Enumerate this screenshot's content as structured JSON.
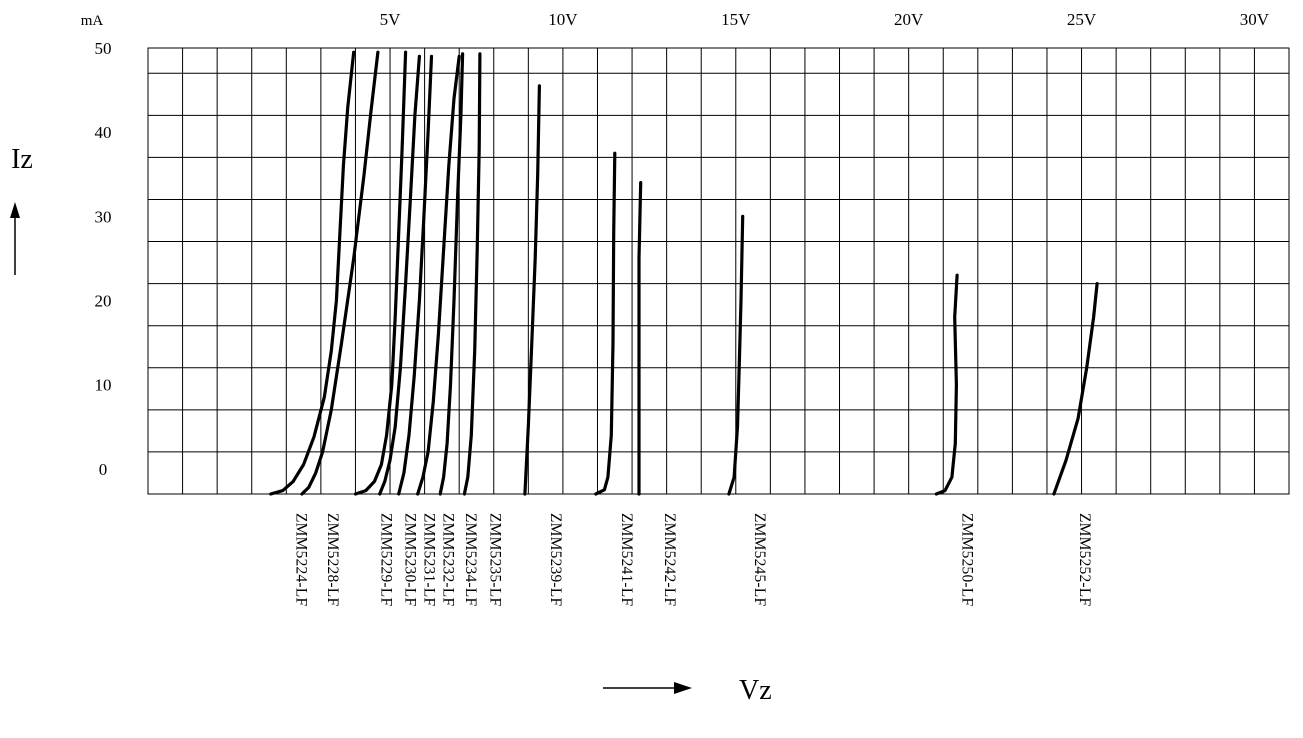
{
  "chart_data": {
    "type": "line",
    "title": "",
    "xlabel": "Vz",
    "ylabel": "Iz",
    "y_unit": "mA",
    "xlim": [
      -2,
      31
    ],
    "ylim": [
      -3,
      50
    ],
    "grid": true,
    "x_tick_labels": [
      {
        "value": 5,
        "label": "5V"
      },
      {
        "value": 10,
        "label": "10V"
      },
      {
        "value": 15,
        "label": "15V"
      },
      {
        "value": 20,
        "label": "20V"
      },
      {
        "value": 25,
        "label": "25V"
      },
      {
        "value": 30,
        "label": "30V"
      }
    ],
    "y_tick_labels": [
      {
        "value": 0,
        "label": "0"
      },
      {
        "value": 10,
        "label": "10"
      },
      {
        "value": 20,
        "label": "20"
      },
      {
        "value": 30,
        "label": "30"
      },
      {
        "value": 40,
        "label": "40"
      },
      {
        "value": 50,
        "label": "50"
      }
    ],
    "series": [
      {
        "name": "ZMM5224-LF",
        "points": [
          [
            1.55,
            -3
          ],
          [
            1.9,
            -2.6
          ],
          [
            2.2,
            -1.5
          ],
          [
            2.5,
            0.5
          ],
          [
            2.8,
            3.8
          ],
          [
            3.1,
            8.5
          ],
          [
            3.3,
            14
          ],
          [
            3.45,
            20
          ],
          [
            3.55,
            28
          ],
          [
            3.65,
            36
          ],
          [
            3.78,
            43
          ],
          [
            3.95,
            49.5
          ]
        ]
      },
      {
        "name": "ZMM5228-LF",
        "points": [
          [
            2.45,
            -3
          ],
          [
            2.65,
            -2.2
          ],
          [
            2.85,
            -0.5
          ],
          [
            3.05,
            2
          ],
          [
            3.3,
            7
          ],
          [
            3.6,
            15
          ],
          [
            3.95,
            25
          ],
          [
            4.25,
            35
          ],
          [
            4.45,
            42.5
          ],
          [
            4.65,
            49.5
          ]
        ]
      },
      {
        "name": "ZMM5229-LF",
        "points": [
          [
            4.0,
            -3
          ],
          [
            4.3,
            -2.6
          ],
          [
            4.55,
            -1.5
          ],
          [
            4.75,
            0.5
          ],
          [
            4.9,
            4
          ],
          [
            5.05,
            10
          ],
          [
            5.15,
            18
          ],
          [
            5.25,
            28
          ],
          [
            5.35,
            38
          ],
          [
            5.45,
            49.5
          ]
        ]
      },
      {
        "name": "ZMM5230-LF",
        "points": [
          [
            4.7,
            -3
          ],
          [
            4.85,
            -1.5
          ],
          [
            5.0,
            1
          ],
          [
            5.15,
            5
          ],
          [
            5.3,
            12
          ],
          [
            5.45,
            22
          ],
          [
            5.6,
            33
          ],
          [
            5.72,
            42
          ],
          [
            5.85,
            49
          ]
        ]
      },
      {
        "name": "ZMM5231-LF",
        "points": [
          [
            5.25,
            -3
          ],
          [
            5.4,
            -0.5
          ],
          [
            5.55,
            4
          ],
          [
            5.7,
            11
          ],
          [
            5.85,
            20
          ],
          [
            5.98,
            30
          ],
          [
            6.1,
            40
          ],
          [
            6.2,
            49
          ]
        ]
      },
      {
        "name": "ZMM5232-LF",
        "points": [
          [
            5.8,
            -3
          ],
          [
            5.95,
            -1
          ],
          [
            6.1,
            2
          ],
          [
            6.25,
            8
          ],
          [
            6.4,
            16
          ],
          [
            6.55,
            26
          ],
          [
            6.7,
            36
          ],
          [
            6.85,
            44
          ],
          [
            7.0,
            49
          ]
        ]
      },
      {
        "name": "ZMM5234-LF",
        "points": [
          [
            6.45,
            -3
          ],
          [
            6.55,
            -1
          ],
          [
            6.65,
            3
          ],
          [
            6.75,
            10
          ],
          [
            6.85,
            20
          ],
          [
            6.95,
            32
          ],
          [
            7.05,
            42
          ],
          [
            7.1,
            49.3
          ]
        ]
      },
      {
        "name": "ZMM5235-LF",
        "points": [
          [
            7.15,
            -3
          ],
          [
            7.25,
            -1
          ],
          [
            7.35,
            4
          ],
          [
            7.45,
            14
          ],
          [
            7.52,
            26
          ],
          [
            7.58,
            38
          ],
          [
            7.6,
            49.3
          ]
        ]
      },
      {
        "name": "ZMM5239-LF",
        "points": [
          [
            8.9,
            -3
          ],
          [
            9.0,
            5
          ],
          [
            9.1,
            15
          ],
          [
            9.2,
            25
          ],
          [
            9.27,
            35
          ],
          [
            9.32,
            45.5
          ]
        ]
      },
      {
        "name": "ZMM5241-LF",
        "points": [
          [
            10.95,
            -3
          ],
          [
            11.2,
            -2.5
          ],
          [
            11.3,
            -1
          ],
          [
            11.4,
            4
          ],
          [
            11.45,
            15
          ],
          [
            11.47,
            28
          ],
          [
            11.5,
            37.5
          ]
        ]
      },
      {
        "name": "ZMM5242-LF",
        "points": [
          [
            12.2,
            -3
          ],
          [
            12.2,
            5
          ],
          [
            12.2,
            15
          ],
          [
            12.2,
            25
          ],
          [
            12.25,
            34
          ]
        ]
      },
      {
        "name": "ZMM5245-LF",
        "points": [
          [
            14.8,
            -3
          ],
          [
            14.95,
            -1
          ],
          [
            15.05,
            5
          ],
          [
            15.1,
            12
          ],
          [
            15.15,
            20
          ],
          [
            15.2,
            30
          ]
        ]
      },
      {
        "name": "ZMM5250-LF",
        "points": [
          [
            20.8,
            -3
          ],
          [
            21.05,
            -2.6
          ],
          [
            21.25,
            -1
          ],
          [
            21.35,
            3
          ],
          [
            21.38,
            10
          ],
          [
            21.33,
            18
          ],
          [
            21.4,
            23
          ]
        ]
      },
      {
        "name": "ZMM5252-LF",
        "points": [
          [
            24.2,
            -3
          ],
          [
            24.55,
            1
          ],
          [
            24.9,
            6
          ],
          [
            25.15,
            12
          ],
          [
            25.35,
            18
          ],
          [
            25.45,
            22
          ]
        ]
      }
    ]
  }
}
